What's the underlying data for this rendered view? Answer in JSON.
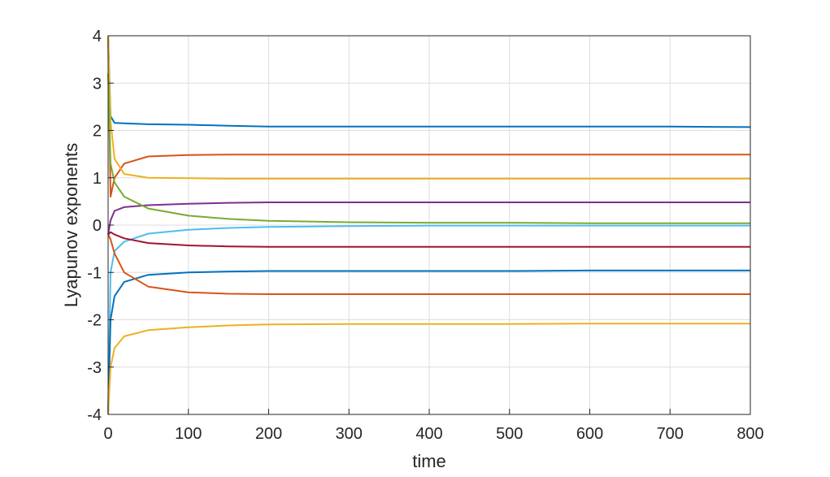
{
  "chart_data": {
    "type": "line",
    "xlabel": "time",
    "ylabel": "Lyapunov exponents",
    "xlim": [
      0,
      800
    ],
    "ylim": [
      -4,
      4
    ],
    "xticks": [
      0,
      100,
      200,
      300,
      400,
      500,
      600,
      700,
      800
    ],
    "yticks": [
      -4,
      -3,
      -2,
      -1,
      0,
      1,
      2,
      3,
      4
    ],
    "grid": true,
    "x": [
      0,
      3,
      8,
      20,
      50,
      100,
      150,
      200,
      300,
      400,
      500,
      600,
      700,
      800
    ],
    "series": [
      {
        "color": "#0072BD",
        "values": [
          4,
          2.3,
          2.16,
          2.15,
          2.13,
          2.12,
          2.1,
          2.08,
          2.08,
          2.08,
          2.08,
          2.08,
          2.08,
          2.07
        ]
      },
      {
        "color": "#D95319",
        "values": [
          4,
          0.6,
          1.0,
          1.3,
          1.45,
          1.48,
          1.49,
          1.49,
          1.49,
          1.49,
          1.49,
          1.49,
          1.49,
          1.49
        ]
      },
      {
        "color": "#EDB120",
        "values": [
          4,
          2.2,
          1.4,
          1.08,
          1.0,
          0.99,
          0.98,
          0.98,
          0.98,
          0.98,
          0.98,
          0.98,
          0.98,
          0.98
        ]
      },
      {
        "color": "#7E2F8E",
        "values": [
          -0.2,
          0.1,
          0.3,
          0.38,
          0.42,
          0.45,
          0.47,
          0.48,
          0.48,
          0.48,
          0.48,
          0.48,
          0.48,
          0.48
        ]
      },
      {
        "color": "#77AC30",
        "values": [
          3.2,
          1.3,
          0.9,
          0.6,
          0.35,
          0.2,
          0.13,
          0.09,
          0.06,
          0.05,
          0.05,
          0.04,
          0.04,
          0.04
        ]
      },
      {
        "color": "#4DBEEE",
        "values": [
          -4,
          -1.0,
          -0.55,
          -0.35,
          -0.18,
          -0.1,
          -0.06,
          -0.04,
          -0.02,
          -0.01,
          -0.01,
          -0.01,
          -0.01,
          -0.01
        ]
      },
      {
        "color": "#A2142F",
        "values": [
          -0.2,
          -0.15,
          -0.2,
          -0.28,
          -0.38,
          -0.43,
          -0.45,
          -0.46,
          -0.46,
          -0.46,
          -0.46,
          -0.46,
          -0.46,
          -0.46
        ]
      },
      {
        "color": "#0072BD",
        "values": [
          -4,
          -2.0,
          -1.5,
          -1.2,
          -1.05,
          -1.0,
          -0.98,
          -0.97,
          -0.97,
          -0.97,
          -0.97,
          -0.96,
          -0.96,
          -0.96
        ]
      },
      {
        "color": "#D95319",
        "values": [
          -0.2,
          -0.3,
          -0.6,
          -1.0,
          -1.3,
          -1.42,
          -1.45,
          -1.46,
          -1.46,
          -1.46,
          -1.46,
          -1.46,
          -1.46,
          -1.46
        ]
      },
      {
        "color": "#EDB120",
        "values": [
          -4,
          -3.0,
          -2.6,
          -2.35,
          -2.22,
          -2.16,
          -2.12,
          -2.1,
          -2.09,
          -2.09,
          -2.09,
          -2.08,
          -2.08,
          -2.08
        ]
      }
    ]
  }
}
